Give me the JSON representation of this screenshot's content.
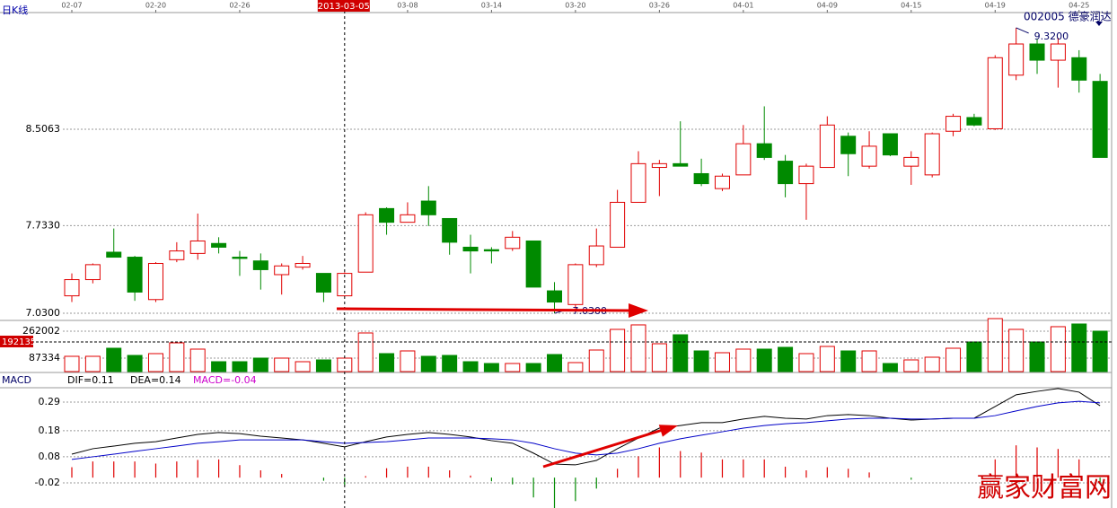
{
  "panel_label": "日K线",
  "security": "002005 德豪润达",
  "cursor": {
    "date": "2013-03-05",
    "volume": 192135
  },
  "watermark": "赢家财富网",
  "chart_data": [
    {
      "type": "candlestick",
      "categories": [
        "02-07",
        null,
        null,
        null,
        "02-20",
        null,
        null,
        null,
        "02-26",
        null,
        null,
        null,
        null,
        null,
        null,
        null,
        "03-08",
        null,
        null,
        null,
        "03-14",
        null,
        null,
        null,
        "03-20",
        null,
        null,
        null,
        "03-26",
        null,
        null,
        null,
        "04-01",
        null,
        null,
        null,
        "04-09",
        null,
        null,
        null,
        "04-15",
        null,
        null,
        null,
        "04-19",
        null,
        null,
        null,
        "04-25",
        null
      ],
      "open": [
        7.17,
        7.3,
        7.52,
        7.48,
        7.14,
        7.46,
        7.51,
        7.59,
        7.48,
        7.45,
        7.34,
        7.4,
        7.35,
        7.17,
        7.36,
        7.87,
        7.76,
        7.93,
        7.79,
        7.56,
        7.54,
        7.55,
        7.61,
        7.21,
        7.1,
        7.42,
        7.56,
        7.92,
        8.2,
        8.23,
        8.15,
        8.03,
        8.14,
        8.39,
        8.25,
        8.07,
        8.2,
        8.45,
        8.21,
        8.47,
        8.21,
        8.14,
        8.49,
        8.6,
        8.51,
        8.94,
        9.19,
        9.06,
        9.08,
        8.89
      ],
      "high": [
        7.35,
        7.43,
        7.71,
        7.49,
        7.44,
        7.6,
        7.83,
        7.64,
        7.53,
        7.51,
        7.43,
        7.49,
        7.35,
        7.36,
        7.84,
        7.88,
        7.92,
        8.05,
        7.79,
        7.66,
        7.56,
        7.69,
        7.61,
        7.28,
        7.43,
        7.71,
        8.02,
        8.33,
        8.26,
        8.57,
        8.27,
        8.15,
        8.54,
        8.69,
        8.3,
        8.23,
        8.61,
        8.48,
        8.49,
        8.47,
        8.33,
        8.48,
        8.63,
        8.63,
        9.1,
        9.32,
        9.23,
        9.24,
        9.14,
        8.95
      ],
      "low": [
        7.12,
        7.27,
        7.48,
        7.13,
        7.12,
        7.44,
        7.46,
        7.51,
        7.33,
        7.22,
        7.18,
        7.38,
        7.12,
        7.17,
        7.36,
        7.66,
        7.76,
        7.73,
        7.5,
        7.35,
        7.43,
        7.53,
        7.24,
        7.03,
        7.05,
        7.4,
        7.56,
        7.92,
        7.97,
        8.21,
        8.05,
        8.01,
        8.14,
        8.26,
        7.96,
        7.78,
        8.2,
        8.13,
        8.19,
        8.29,
        8.06,
        8.12,
        8.45,
        8.53,
        8.5,
        8.9,
        8.95,
        8.84,
        8.8,
        8.28
      ],
      "close": [
        7.3,
        7.42,
        7.48,
        7.2,
        7.43,
        7.53,
        7.61,
        7.56,
        7.47,
        7.38,
        7.41,
        7.43,
        7.2,
        7.35,
        7.82,
        7.76,
        7.82,
        7.82,
        7.6,
        7.53,
        7.53,
        7.64,
        7.24,
        7.12,
        7.42,
        7.57,
        7.92,
        8.23,
        8.23,
        8.21,
        8.07,
        8.13,
        8.39,
        8.28,
        8.07,
        8.21,
        8.54,
        8.31,
        8.37,
        8.3,
        8.28,
        8.47,
        8.61,
        8.54,
        9.08,
        9.19,
        9.06,
        9.19,
        8.9,
        8.28
      ],
      "up_color": "#e00000",
      "down_color": "#008a00",
      "ylim": [
        6.98,
        9.442
      ],
      "yticks": [
        {
          "value": 7.03,
          "label": "7.0300"
        },
        {
          "value": 7.733,
          "label": "7.7330"
        },
        8.5063
      ],
      "high_label": "9.3200",
      "low_label": "7.0300"
    },
    {
      "type": "bar",
      "values": [
        98974,
        98974,
        151372,
        104796,
        116440,
        186304,
        145550,
        64042,
        64042,
        87330,
        87330,
        64042,
        75686,
        87330,
        250346,
        116440,
        133906,
        98974,
        104796,
        64042,
        52398,
        52398,
        52398,
        110618,
        58220,
        139728,
        273634,
        302744,
        180482,
        238702,
        133906,
        122262,
        145550,
        145550,
        157194,
        116440,
        163016,
        133906,
        133906,
        52398,
        75686,
        93152,
        151372,
        192126,
        343498,
        273634,
        192126,
        291100,
        308566,
        261990
      ],
      "up_color": "#e00000",
      "down_color": "#008a00",
      "ylim": [
        0,
        355000
      ],
      "yticks": [
        87334,
        262002
      ]
    },
    {
      "type": "macd",
      "title": "MACD",
      "readouts": [
        "DIF=0.11",
        "DEA=0.14",
        "MACD=-0.04"
      ],
      "series": [
        {
          "color": "#000000",
          "values": [
            0.09,
            0.111,
            0.121,
            0.132,
            0.138,
            0.152,
            0.166,
            0.173,
            0.169,
            0.159,
            0.152,
            0.145,
            0.132,
            0.118,
            0.138,
            0.156,
            0.166,
            0.173,
            0.166,
            0.156,
            0.142,
            0.132,
            0.094,
            0.052,
            0.049,
            0.066,
            0.111,
            0.152,
            0.19,
            0.2,
            0.211,
            0.211,
            0.225,
            0.235,
            0.228,
            0.225,
            0.238,
            0.242,
            0.238,
            0.228,
            0.221,
            0.225,
            0.228,
            0.228,
            0.273,
            0.318,
            0.331,
            0.342,
            0.328,
            0.276
          ]
        },
        {
          "color": "#0000c8",
          "values": [
            0.07,
            0.08,
            0.09,
            0.101,
            0.111,
            0.121,
            0.132,
            0.138,
            0.145,
            0.145,
            0.145,
            0.145,
            0.138,
            0.132,
            0.135,
            0.138,
            0.145,
            0.152,
            0.152,
            0.152,
            0.149,
            0.145,
            0.132,
            0.111,
            0.094,
            0.087,
            0.094,
            0.111,
            0.132,
            0.149,
            0.163,
            0.176,
            0.19,
            0.2,
            0.207,
            0.211,
            0.218,
            0.225,
            0.228,
            0.228,
            0.225,
            0.225,
            0.228,
            0.228,
            0.238,
            0.256,
            0.273,
            0.287,
            0.293,
            0.287
          ]
        }
      ],
      "histogram": {
        "up_color": "#e00000",
        "down_color": "#008a00",
        "values": [
          0.04,
          0.062,
          0.062,
          0.062,
          0.054,
          0.062,
          0.068,
          0.07,
          0.048,
          0.028,
          0.014,
          0,
          -0.012,
          -0.028,
          0.006,
          0.036,
          0.042,
          0.042,
          0.028,
          0.008,
          -0.014,
          -0.026,
          -0.076,
          -0.118,
          -0.09,
          -0.042,
          0.034,
          0.082,
          0.116,
          0.102,
          0.096,
          0.07,
          0.07,
          0.07,
          0.042,
          0.028,
          0.04,
          0.034,
          0.02,
          0,
          -0.008,
          0,
          0,
          0,
          0.07,
          0.124,
          0.116,
          0.11,
          0.07,
          -0.022
        ]
      },
      "ylim": [
        -0.12,
        0.345
      ],
      "yticks": [
        0.29,
        0.18,
        0.08,
        -0.02
      ]
    }
  ]
}
